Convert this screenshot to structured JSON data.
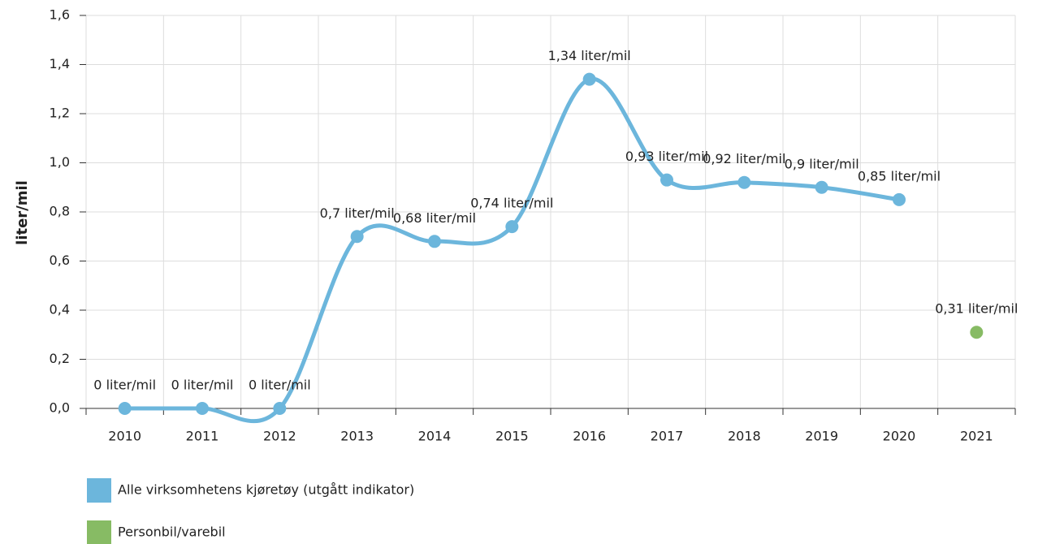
{
  "chart_data": {
    "type": "line",
    "y_label": "liter/mil",
    "categories": [
      "2010",
      "2011",
      "2012",
      "2013",
      "2014",
      "2015",
      "2016",
      "2017",
      "2018",
      "2019",
      "2020",
      "2021"
    ],
    "series": [
      {
        "name": "Alle virksomhetens kjøretøy (utgått indikator)",
        "color": "#6cb6dc",
        "values": [
          0,
          0,
          0,
          0.7,
          0.68,
          0.74,
          1.34,
          0.93,
          0.92,
          0.9,
          0.85,
          null
        ],
        "value_labels": [
          "0 liter/mil",
          "0 liter/mil",
          "0 liter/mil",
          "0,7 liter/mil",
          "0,68 liter/mil",
          "0,74 liter/mil",
          "1,34 liter/mil",
          "0,93 liter/mil",
          "0,92 liter/mil",
          "0,9 liter/mil",
          "0,85 liter/mil",
          null
        ]
      },
      {
        "name": "Personbil/varebil",
        "color": "#87bb64",
        "values": [
          null,
          null,
          null,
          null,
          null,
          null,
          null,
          null,
          null,
          null,
          null,
          0.31
        ],
        "value_labels": [
          null,
          null,
          null,
          null,
          null,
          null,
          null,
          null,
          null,
          null,
          null,
          "0,31 liter/mil"
        ]
      }
    ],
    "ylim": [
      0,
      1.6
    ],
    "yticks": [
      {
        "value": 0,
        "label": "0,0"
      },
      {
        "value": 0.2,
        "label": "0,2"
      },
      {
        "value": 0.4,
        "label": "0,4"
      },
      {
        "value": 0.6,
        "label": "0,6"
      },
      {
        "value": 0.8,
        "label": "0,8"
      },
      {
        "value": 1.0,
        "label": "1,0"
      },
      {
        "value": 1.2,
        "label": "1,2"
      },
      {
        "value": 1.4,
        "label": "1,4"
      },
      {
        "value": 1.6,
        "label": "1,6"
      }
    ],
    "grid": true
  }
}
